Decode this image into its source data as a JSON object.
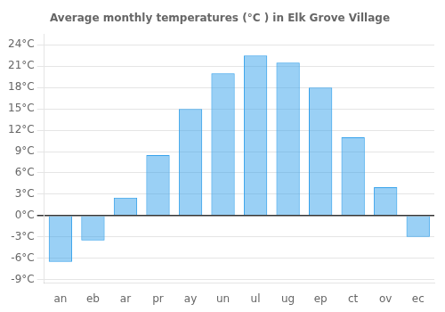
{
  "chart_data": {
    "type": "bar",
    "title": "Average monthly temperatures (°C ) in Elk Grove Village",
    "categories": [
      "an",
      "eb",
      "ar",
      "pr",
      "ay",
      "un",
      "ul",
      "ug",
      "ep",
      "ct",
      "ov",
      "ec"
    ],
    "values": [
      -6.5,
      -3.5,
      2.5,
      8.5,
      15.0,
      20.0,
      22.5,
      21.5,
      18.0,
      11.0,
      4.0,
      -3.0
    ],
    "ylim": [
      -9.5,
      25.5
    ],
    "yticks": [
      {
        "value": -9,
        "label": "-9°C"
      },
      {
        "value": -6,
        "label": "-6°C"
      },
      {
        "value": -3,
        "label": "-3°C"
      },
      {
        "value": 0,
        "label": "0°C"
      },
      {
        "value": 3,
        "label": "3°C"
      },
      {
        "value": 6,
        "label": "6°C"
      },
      {
        "value": 9,
        "label": "9°C"
      },
      {
        "value": 12,
        "label": "12°C"
      },
      {
        "value": 15,
        "label": "15°C"
      },
      {
        "value": 18,
        "label": "18°C"
      },
      {
        "value": 21,
        "label": "21°C"
      },
      {
        "value": 24,
        "label": "24°C"
      }
    ],
    "grid": true
  }
}
